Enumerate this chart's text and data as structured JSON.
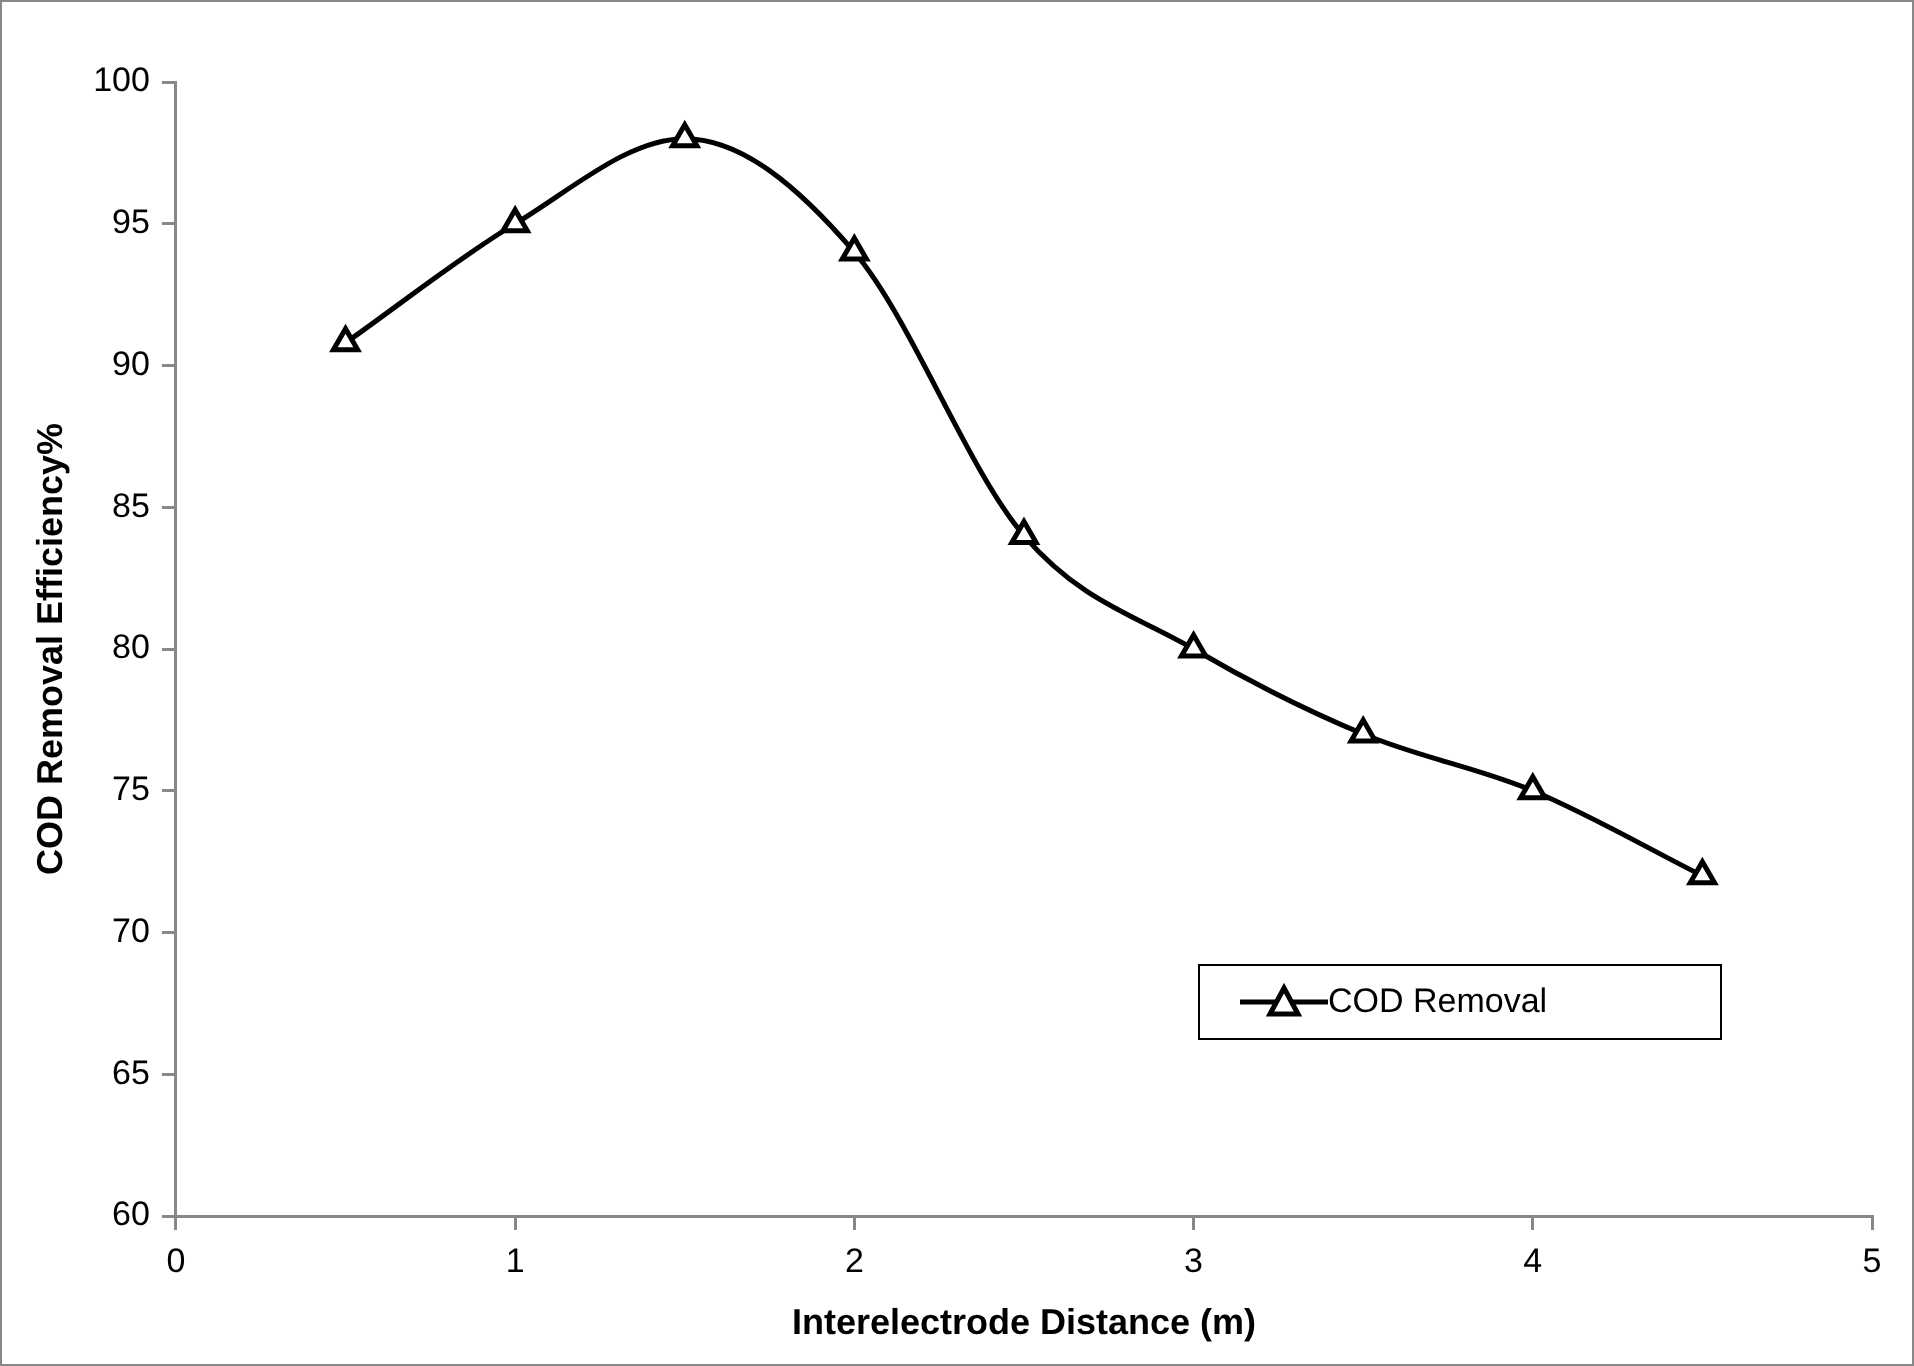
{
  "chart_data": {
    "type": "line",
    "xlabel": "Interelectrode Distance (m)",
    "ylabel": "COD Removal Efficiency%",
    "x": [
      0.5,
      1,
      1.5,
      2,
      2.5,
      3,
      3.5,
      4,
      4.5
    ],
    "series": [
      {
        "name": "COD Removal",
        "color": "#000000",
        "values": [
          90.8,
          95,
          98,
          94,
          84,
          80,
          77,
          75,
          72
        ]
      }
    ],
    "xlim": [
      0,
      5
    ],
    "xticks": [
      0,
      1,
      2,
      3,
      4,
      5
    ],
    "ylim": [
      60,
      100
    ],
    "yticks": [
      60,
      65,
      70,
      75,
      80,
      85,
      90,
      95,
      100
    ],
    "grid": false,
    "legend": "bottom right",
    "marker": "triangle",
    "line_style": "solid"
  }
}
